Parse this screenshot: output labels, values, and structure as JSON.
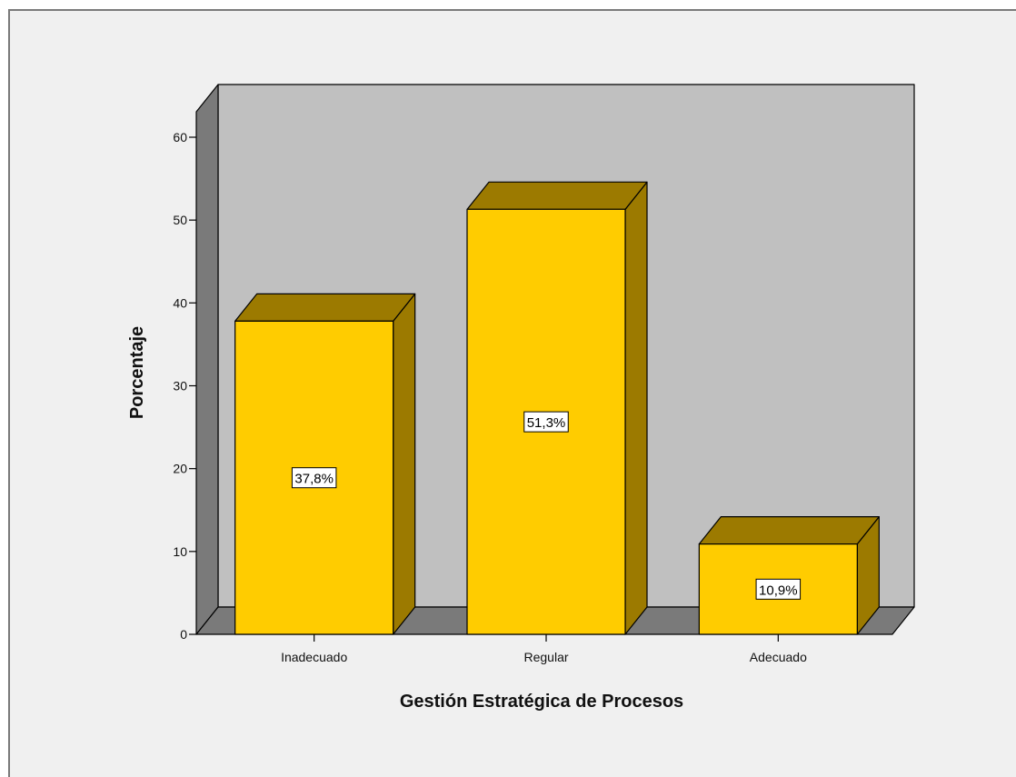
{
  "chart_data": {
    "type": "bar",
    "categories": [
      "Inadecuado",
      "Regular",
      "Adecuado"
    ],
    "values": [
      37.8,
      51.3,
      10.9
    ],
    "data_labels": [
      "37,8%",
      "51,3%",
      "10,9%"
    ],
    "xlabel": "Gestión Estratégica de Procesos",
    "ylabel": "Porcentaje",
    "ylim": [
      0,
      60
    ],
    "yticks": [
      "0",
      "10",
      "20",
      "30",
      "40",
      "50",
      "60"
    ],
    "grid": false,
    "style": "3d",
    "colors": {
      "bar_front": "#ffcc00",
      "bar_top_side": "#9c7a00",
      "back_wall": "#c0c0c0",
      "side_wall": "#7a7a7a",
      "floor": "#7a7a7a",
      "frame_bg": "#f0f0f0"
    }
  }
}
